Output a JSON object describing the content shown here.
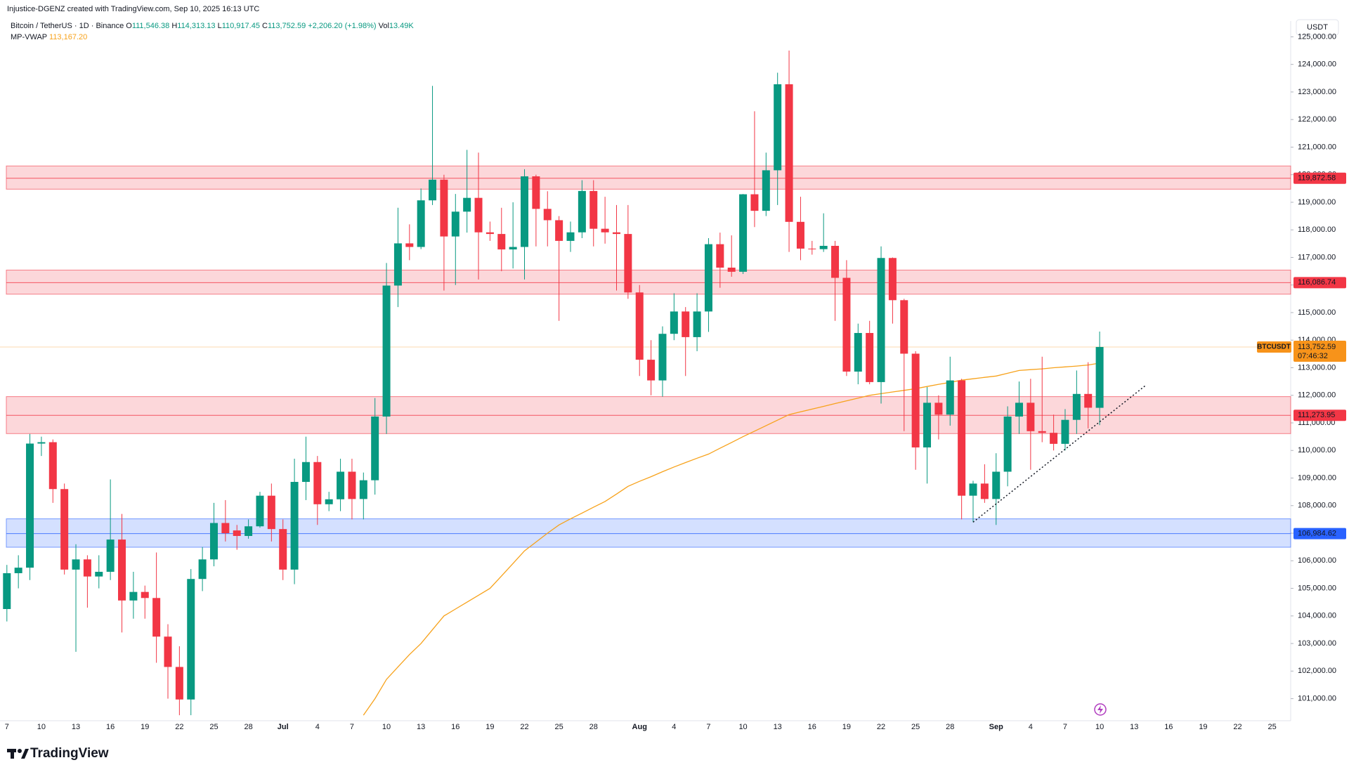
{
  "header": {
    "credit": "Injustice-DGENZ created with TradingView.com, Sep 10, 2025 16:13 UTC",
    "symbol": "Bitcoin / TetherUS · 1D · Binance",
    "ohlc": [
      {
        "key": "O",
        "value": "111,546.38"
      },
      {
        "key": "H",
        "value": "114,313.13"
      },
      {
        "key": "L",
        "value": "110,917.45"
      },
      {
        "key": "C",
        "value": "113,752.59"
      }
    ],
    "change": "+2,206.20 (+1.98%)",
    "vol_key": "Vol",
    "vol": "13.49K",
    "indicator_value": "113,167.20"
  },
  "brand": "TradingView",
  "chart_data": {
    "type": "candlestick",
    "currency": "USDT",
    "grid": false,
    "up_color": "#089981",
    "down_color": "#f23645",
    "categories": [
      "7",
      null,
      null,
      "10",
      null,
      null,
      "13",
      null,
      null,
      "16",
      null,
      null,
      "19",
      null,
      null,
      "22",
      null,
      null,
      "25",
      null,
      null,
      "28",
      null,
      null,
      "Jul",
      null,
      null,
      "4",
      null,
      null,
      "7",
      null,
      null,
      "10",
      null,
      null,
      "13",
      null,
      null,
      "16",
      null,
      null,
      "19",
      null,
      null,
      "22",
      null,
      null,
      "25",
      null,
      null,
      "28",
      null,
      null,
      null,
      "Aug",
      null,
      null,
      "4",
      null,
      null,
      "7",
      null,
      null,
      "10",
      null,
      null,
      "13",
      null,
      null,
      "16",
      null,
      null,
      "19",
      null,
      null,
      "22",
      null,
      null,
      "25",
      null,
      null,
      "28",
      null,
      null,
      null,
      "Sep",
      null,
      null,
      "4",
      null,
      null,
      "7",
      null,
      null,
      "10",
      null,
      null,
      "13",
      null,
      null,
      "16",
      null,
      null,
      "19",
      null,
      null,
      "22",
      null,
      null,
      "25"
    ],
    "open": [
      104250,
      105550,
      105750,
      110250,
      110300,
      108600,
      105680,
      106050,
      105430,
      105600,
      106770,
      104560,
      104870,
      104650,
      103250,
      102150,
      100970,
      105340,
      106050,
      107370,
      107100,
      106900,
      107250,
      108360,
      107150,
      105680,
      108860,
      109580,
      108050,
      108230,
      109230,
      108240,
      108920,
      111230,
      115980,
      117510,
      117380,
      119070,
      119820,
      117760,
      118660,
      119160,
      117910,
      117850,
      117290,
      117380,
      119940,
      118760,
      118350,
      117600,
      117910,
      119410,
      118040,
      117910,
      117850,
      115730,
      113290,
      112540,
      114230,
      115040,
      114110,
      115040,
      117480,
      116630,
      116480,
      119290,
      118690,
      120160,
      123280,
      118290,
      117320,
      117300,
      117420,
      116260,
      112860,
      114260,
      112480,
      116980,
      115450,
      113510,
      110110,
      111730,
      111300,
      112540,
      108360,
      108800,
      108240,
      109230,
      111230,
      111730,
      110700,
      110640,
      110240,
      111110,
      112050,
      111546.38,
      null,
      null,
      null,
      null,
      null,
      null,
      null,
      null,
      null,
      null,
      null,
      null,
      null,
      null,
      null
    ],
    "high": [
      105850,
      106200,
      110600,
      110500,
      110400,
      108800,
      106600,
      106200,
      106200,
      108950,
      107700,
      105600,
      105100,
      106300,
      103700,
      102900,
      105700,
      106500,
      108100,
      108200,
      107300,
      107500,
      108500,
      108800,
      107500,
      109700,
      110500,
      109800,
      108500,
      109700,
      109700,
      109200,
      111900,
      116800,
      118800,
      118200,
      119500,
      123220,
      120000,
      119300,
      120900,
      120800,
      118300,
      118800,
      119000,
      120200,
      120000,
      119400,
      118500,
      118300,
      119800,
      119800,
      119200,
      118900,
      118900,
      116000,
      114000,
      114500,
      115700,
      115200,
      115700,
      117700,
      117900,
      117800,
      119300,
      122300,
      120800,
      123700,
      124500,
      119200,
      117600,
      118600,
      117600,
      116900,
      114600,
      114700,
      117400,
      117000,
      115500,
      113600,
      112300,
      112000,
      113400,
      112600,
      108900,
      109500,
      109900,
      111600,
      112500,
      112600,
      113400,
      111300,
      111500,
      112900,
      113200,
      114313.13,
      null,
      null,
      null,
      null,
      null,
      null,
      null,
      null,
      null,
      null,
      null,
      null,
      null,
      null,
      null
    ],
    "low": [
      103800,
      105000,
      105300,
      109800,
      108100,
      105500,
      102700,
      104300,
      105000,
      105300,
      103400,
      103900,
      103900,
      102300,
      101000,
      100400,
      100400,
      104900,
      105800,
      106700,
      106400,
      106800,
      107200,
      106700,
      105300,
      105150,
      108200,
      107300,
      107800,
      107800,
      107500,
      107500,
      108400,
      110600,
      115200,
      116900,
      117300,
      118900,
      115800,
      116000,
      117900,
      116200,
      117600,
      116500,
      116600,
      116200,
      117400,
      117400,
      114700,
      117200,
      117700,
      117400,
      117500,
      115800,
      115500,
      112700,
      112000,
      111950,
      114000,
      112700,
      113600,
      114300,
      115900,
      116300,
      116400,
      118100,
      118500,
      118900,
      117200,
      116900,
      117100,
      117200,
      114700,
      112700,
      112400,
      112400,
      111700,
      114600,
      110700,
      109300,
      108800,
      110400,
      110900,
      107500,
      107400,
      108100,
      107300,
      108700,
      110600,
      109300,
      110300,
      110000,
      110000,
      110600,
      110800,
      110917.45,
      null,
      null,
      null,
      null,
      null,
      null,
      null,
      null,
      null,
      null,
      null,
      null,
      null,
      null,
      null
    ],
    "close": [
      105550,
      105750,
      110250,
      110300,
      108600,
      105680,
      106050,
      105430,
      105600,
      106770,
      104560,
      104870,
      104650,
      103250,
      102150,
      100970,
      105340,
      106050,
      107370,
      107000,
      106900,
      107250,
      108360,
      107150,
      105680,
      108860,
      109580,
      108050,
      108230,
      109230,
      108240,
      108920,
      111230,
      115980,
      117510,
      117380,
      119070,
      119820,
      117760,
      118660,
      119160,
      117910,
      117850,
      117290,
      117380,
      119940,
      118760,
      118350,
      117600,
      117910,
      119410,
      118040,
      117910,
      117850,
      115730,
      113290,
      112540,
      114230,
      115040,
      114110,
      115040,
      117480,
      116630,
      116480,
      119290,
      118690,
      120160,
      123280,
      118290,
      117320,
      117300,
      117420,
      116260,
      112860,
      114260,
      112480,
      116980,
      115450,
      113510,
      110110,
      111730,
      111300,
      112540,
      108360,
      108800,
      108240,
      109230,
      111230,
      111730,
      110700,
      110640,
      110240,
      111110,
      112050,
      111550,
      113752.59,
      null,
      null,
      null,
      null,
      null,
      null,
      null,
      null,
      null,
      null,
      null,
      null,
      null,
      null,
      null
    ],
    "vwap": {
      "name": "MP-VWAP",
      "color": "#f7a21b",
      "values": [
        null,
        null,
        null,
        null,
        null,
        null,
        null,
        null,
        null,
        null,
        null,
        null,
        null,
        null,
        null,
        null,
        null,
        null,
        null,
        null,
        null,
        null,
        null,
        null,
        null,
        null,
        null,
        null,
        null,
        null,
        null,
        100400,
        101000,
        101700,
        102150,
        102600,
        103000,
        103500,
        104000,
        104250,
        104500,
        104750,
        105000,
        105450,
        105900,
        106360,
        106680,
        107000,
        107300,
        107520,
        107730,
        107940,
        108150,
        108420,
        108700,
        108880,
        109050,
        109230,
        109400,
        109560,
        109720,
        109870,
        110080,
        110290,
        110500,
        110700,
        110900,
        111100,
        111300,
        111400,
        111500,
        111600,
        111700,
        111800,
        111900,
        112000,
        112060,
        112120,
        112180,
        112240,
        112320,
        112400,
        112470,
        112550,
        112600,
        112650,
        112700,
        112800,
        112900,
        112930,
        112960,
        113000,
        113030,
        113060,
        113100,
        113167.2,
        null,
        null,
        null,
        null,
        null,
        null,
        null,
        null,
        null,
        null,
        null,
        null,
        null,
        null,
        null
      ]
    },
    "zones": [
      {
        "value": 119872.58,
        "label": "119,872.58",
        "top": 120317,
        "bottom": 119475,
        "color": "#f23645"
      },
      {
        "value": 116086.74,
        "label": "116,086.74",
        "top": 116541,
        "bottom": 115667,
        "color": "#f23645"
      },
      {
        "value": 111273.95,
        "label": "111,273.95",
        "top": 111953,
        "bottom": 110611,
        "color": "#f23645"
      },
      {
        "value": 106984.62,
        "label": "106,984.62",
        "top": 107521,
        "bottom": 106491,
        "color": "#2962ff"
      }
    ],
    "last_price": {
      "symbol": "BTCUSDT",
      "value": 113752.59,
      "label": "113,752.59",
      "countdown": "07:46:32",
      "color": "#f7931a"
    },
    "trendline": {
      "x": [
        84,
        99
      ],
      "values": [
        107400,
        112360
      ]
    },
    "ylim": [
      100200,
      125400
    ],
    "yticks": [
      {
        "value": 101000,
        "label": "101,000.00"
      },
      {
        "value": 102000,
        "label": "102,000.00"
      },
      {
        "value": 103000,
        "label": "103,000.00"
      },
      {
        "value": 104000,
        "label": "104,000.00"
      },
      {
        "value": 105000,
        "label": "105,000.00"
      },
      {
        "value": 106000,
        "label": "106,000.00"
      },
      {
        "value": 107000,
        "label": "107,000.00"
      },
      {
        "value": 108000,
        "label": "108,000.00"
      },
      {
        "value": 109000,
        "label": "109,000.00"
      },
      {
        "value": 110000,
        "label": "110,000.00"
      },
      {
        "value": 111000,
        "label": "111,000.00"
      },
      {
        "value": 112000,
        "label": "112,000.00"
      },
      {
        "value": 113000,
        "label": "113,000.00"
      },
      {
        "value": 114000,
        "label": "114,000.00"
      },
      {
        "value": 115000,
        "label": "115,000.00"
      },
      {
        "value": 116000,
        "label": "116,000.00"
      },
      {
        "value": 117000,
        "label": "117,000.00"
      },
      {
        "value": 118000,
        "label": "118,000.00"
      },
      {
        "value": 119000,
        "label": "119,000.00"
      },
      {
        "value": 120000,
        "label": "120,000.00"
      },
      {
        "value": 121000,
        "label": "121,000.00"
      },
      {
        "value": 122000,
        "label": "122,000.00"
      },
      {
        "value": 123000,
        "label": "123,000.00"
      },
      {
        "value": 124000,
        "label": "124,000.00"
      },
      {
        "value": 125000,
        "label": "125,000.00"
      }
    ]
  }
}
